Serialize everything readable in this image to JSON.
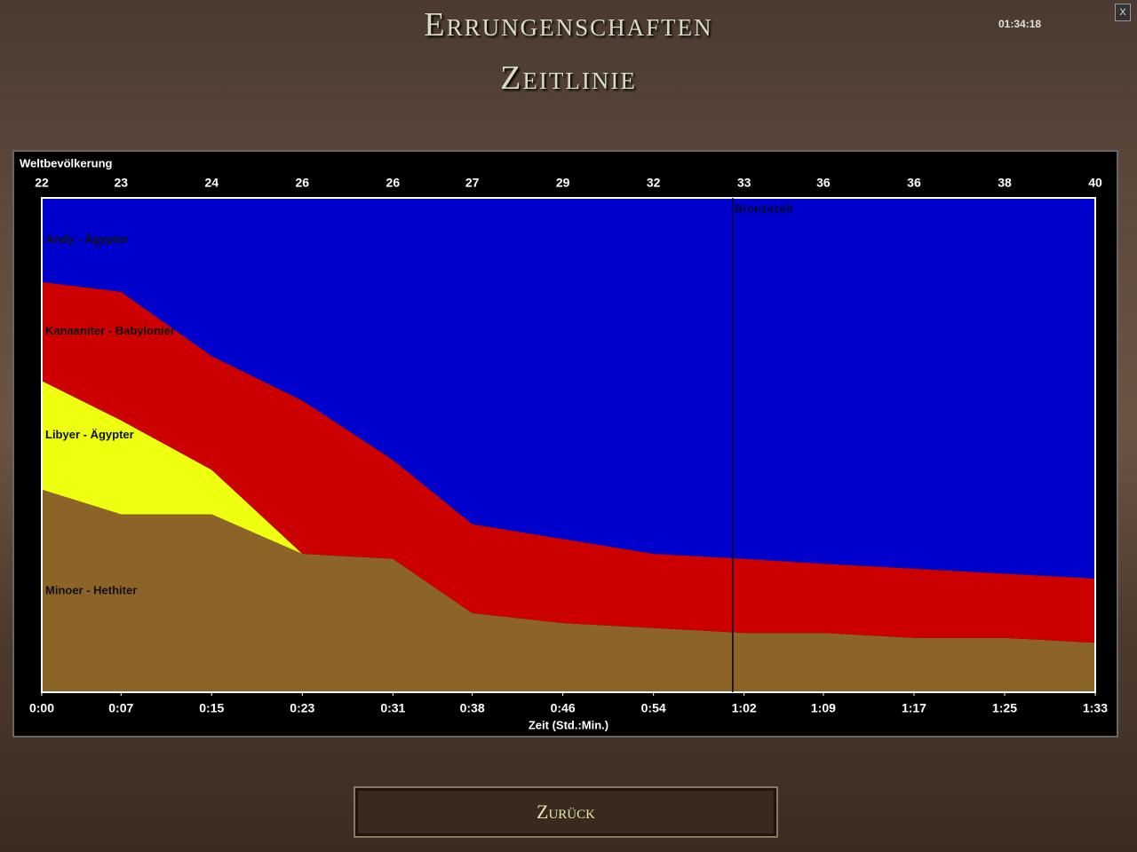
{
  "header": {
    "title": "Errungenschaften",
    "subtitle": "Zeitlinie",
    "clock": "01:34:18",
    "close": "X"
  },
  "chart_data": {
    "type": "area",
    "stacked": true,
    "population_title": "Weltbevölkerung",
    "population": [
      22,
      23,
      24,
      26,
      26,
      27,
      29,
      32,
      33,
      36,
      36,
      38,
      40
    ],
    "x_label": "Zeit (Std.:Min.)",
    "x": [
      0,
      7,
      15,
      23,
      31,
      38,
      46,
      54,
      62,
      69,
      77,
      85,
      93
    ],
    "xlim": [
      0,
      93
    ],
    "xticks": [
      {
        "value": 0,
        "label": "0:00"
      },
      {
        "value": 7,
        "label": "0:07"
      },
      {
        "value": 15,
        "label": "0:15"
      },
      {
        "value": 23,
        "label": "0:23"
      },
      {
        "value": 31,
        "label": "0:31"
      },
      {
        "value": 38,
        "label": "0:38"
      },
      {
        "value": 46,
        "label": "0:46"
      },
      {
        "value": 54,
        "label": "0:54"
      },
      {
        "value": 62,
        "label": "1:02"
      },
      {
        "value": 69,
        "label": "1:09"
      },
      {
        "value": 77,
        "label": "1:17"
      },
      {
        "value": 85,
        "label": "1:25"
      },
      {
        "value": 93,
        "label": "1:33"
      }
    ],
    "ylim": [
      0,
      100
    ],
    "series": [
      {
        "name": "Minoer - Hethiter",
        "color": "#8c6428",
        "values": [
          41,
          36,
          36,
          28,
          27,
          16,
          14,
          13,
          12,
          12,
          11,
          11,
          10
        ]
      },
      {
        "name": "Libyer - Ägypter",
        "color": "#eeff10",
        "values": [
          22,
          19,
          9,
          0,
          0,
          0,
          0,
          0,
          0,
          0,
          0,
          0,
          0
        ]
      },
      {
        "name": "Kanaaniter - Babylonier",
        "color": "#cc0000",
        "values": [
          20,
          26,
          23,
          31,
          20,
          18,
          17,
          15,
          15,
          14,
          14,
          13,
          13
        ]
      },
      {
        "name": "Andy - Ägypter",
        "color": "#0000cc",
        "values": [
          17,
          19,
          32,
          41,
          53,
          66,
          69,
          72,
          73,
          74,
          75,
          76,
          77
        ]
      }
    ],
    "events": [
      {
        "label": "Bronzezeit",
        "x": 61
      }
    ]
  },
  "button": {
    "label": "Zurück"
  }
}
